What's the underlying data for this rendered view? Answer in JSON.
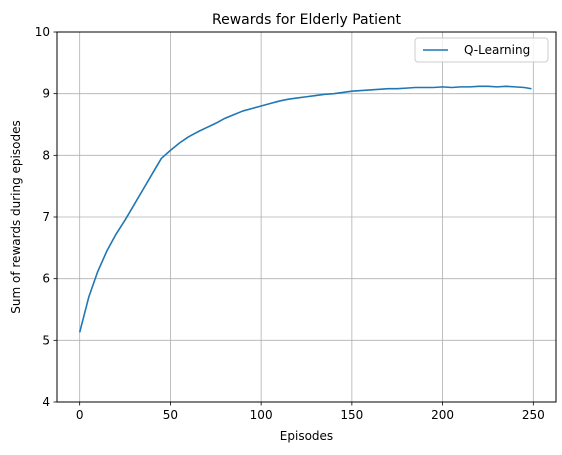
{
  "chart_data": {
    "type": "line",
    "title": "Rewards for Elderly Patient",
    "xlabel": "Episodes",
    "ylabel": "Sum of rewards during episodes",
    "xlim": [
      -12.5,
      262.5
    ],
    "ylim": [
      4,
      10
    ],
    "xticks": [
      0,
      50,
      100,
      150,
      200,
      250
    ],
    "yticks": [
      4,
      5,
      6,
      7,
      8,
      9,
      10
    ],
    "grid": true,
    "legend": {
      "placement": "upper right",
      "entries": [
        "Q-Learning"
      ]
    },
    "colors": {
      "series": "#1f77b4"
    },
    "series": [
      {
        "name": "Q-Learning",
        "x": [
          0,
          5,
          10,
          15,
          20,
          25,
          30,
          35,
          40,
          45,
          50,
          55,
          60,
          65,
          70,
          75,
          80,
          85,
          90,
          95,
          100,
          105,
          110,
          115,
          120,
          125,
          130,
          135,
          140,
          145,
          150,
          155,
          160,
          165,
          170,
          175,
          180,
          185,
          190,
          195,
          200,
          205,
          210,
          215,
          220,
          225,
          230,
          235,
          240,
          245,
          249
        ],
        "y": [
          5.13,
          5.7,
          6.12,
          6.45,
          6.72,
          6.95,
          7.2,
          7.45,
          7.7,
          7.95,
          8.08,
          8.2,
          8.3,
          8.38,
          8.45,
          8.52,
          8.6,
          8.66,
          8.72,
          8.76,
          8.8,
          8.84,
          8.88,
          8.91,
          8.93,
          8.95,
          8.97,
          8.99,
          9.0,
          9.02,
          9.04,
          9.05,
          9.06,
          9.07,
          9.08,
          9.08,
          9.09,
          9.1,
          9.1,
          9.1,
          9.11,
          9.1,
          9.11,
          9.11,
          9.12,
          9.12,
          9.11,
          9.12,
          9.11,
          9.1,
          9.08
        ]
      }
    ]
  }
}
